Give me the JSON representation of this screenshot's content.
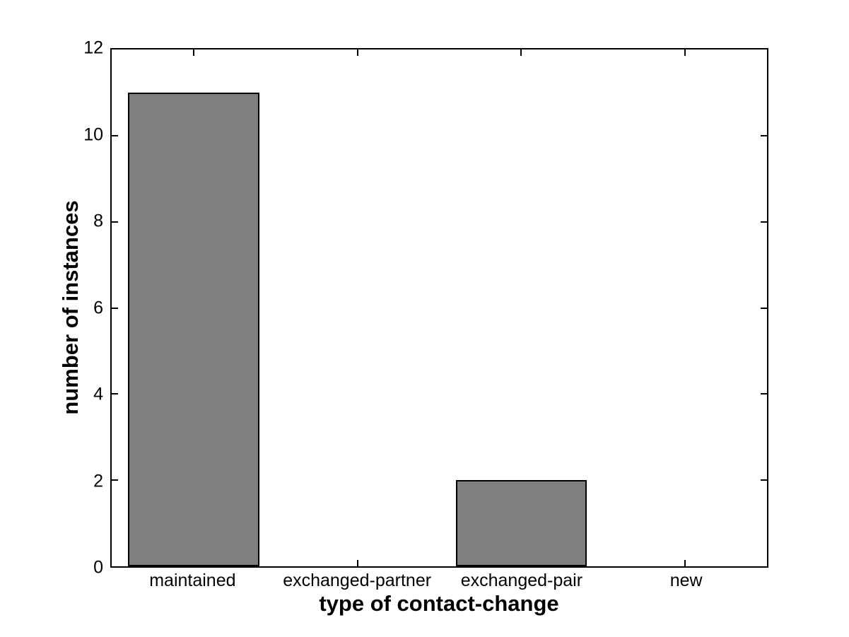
{
  "chart_data": {
    "type": "bar",
    "categories": [
      "maintained",
      "exchanged-partner",
      "exchanged-pair",
      "new"
    ],
    "values": [
      11,
      0,
      2,
      0
    ],
    "xlabel": "type of contact-change",
    "ylabel": "number of instances",
    "ylim": [
      0,
      12
    ],
    "yticks": [
      0,
      2,
      4,
      6,
      8,
      10,
      12
    ],
    "ytick_labels": [
      "0",
      "2",
      "4",
      "6",
      "8",
      "10",
      "12"
    ],
    "bar_width_fraction": 0.8,
    "bar_fill_color": "#7f7f7f",
    "bar_edge_color": "#000000",
    "axis_color": "#000000",
    "background_color": "#ffffff",
    "grid": false,
    "legend_position": "none",
    "tick_direction": "in",
    "box": true
  }
}
